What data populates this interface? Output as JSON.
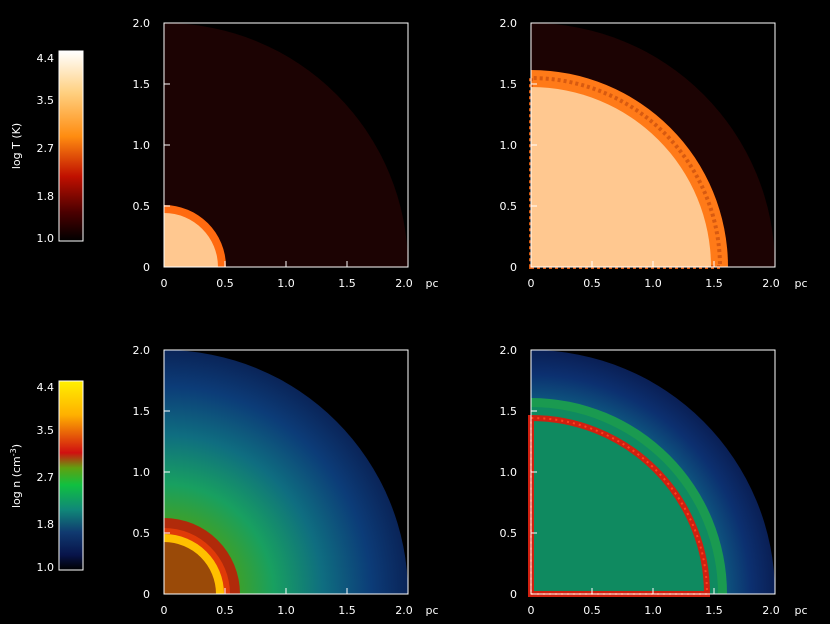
{
  "colorbars": [
    {
      "label": "log T (K)",
      "ticks": [
        "4.4",
        "3.5",
        "2.7",
        "1.8",
        "1.0"
      ],
      "colormap": [
        "#ffffff",
        "#ffd080",
        "#ff8c10",
        "#c01000",
        "#4a0000",
        "#000000"
      ]
    },
    {
      "label_main": "log n (cm",
      "label_sup": "-3",
      "label_close": ")",
      "ticks": [
        "4.4",
        "3.5",
        "2.7",
        "1.8",
        "1.0"
      ],
      "colormap": [
        "#fff000",
        "#ffb000",
        "#d01010",
        "#60a010",
        "#10c040",
        "#108878",
        "#103a70",
        "#08144a",
        "#000000"
      ]
    }
  ],
  "panels": [
    {
      "quantity": "temperature",
      "shell_radius_pc": 0.5,
      "ticks_x": [
        "0",
        "0.5",
        "1.0",
        "1.5",
        "2.0"
      ],
      "ticks_y": [
        "0",
        "0.5",
        "1.0",
        "1.5",
        "2.0"
      ],
      "unit": "pc"
    },
    {
      "quantity": "temperature",
      "shell_radius_pc": 1.55,
      "ticks_x": [
        "0",
        "0.5",
        "1.0",
        "1.5",
        "2.0"
      ],
      "ticks_y": [
        "0",
        "0.5",
        "1.0",
        "1.5",
        "2.0"
      ],
      "unit": "pc"
    },
    {
      "quantity": "density",
      "shell_radius_pc": 0.5,
      "ticks_x": [
        "0",
        "0.5",
        "1.0",
        "1.5",
        "2.0"
      ],
      "ticks_y": [
        "0",
        "0.5",
        "1.0",
        "1.5",
        "2.0"
      ],
      "unit": "pc"
    },
    {
      "quantity": "density",
      "shell_radius_pc": 1.5,
      "ticks_x": [
        "0",
        "0.5",
        "1.0",
        "1.5",
        "2.0"
      ],
      "ticks_y": [
        "0",
        "0.5",
        "1.0",
        "1.5",
        "2.0"
      ],
      "unit": "pc"
    }
  ],
  "domain_radius_pc": 2.0,
  "colors": {
    "background": "#000000",
    "axes": "#ffffff",
    "temp_ambient": "#1c0303",
    "temp_hot_interior": "#ffc890",
    "temp_shell": "#ff8020",
    "dens_interior_small": "#9a4a08",
    "dens_interior_large": "#0f8a60",
    "dens_shell_small": "#ffc000",
    "dens_shell_large": "#d02010"
  }
}
